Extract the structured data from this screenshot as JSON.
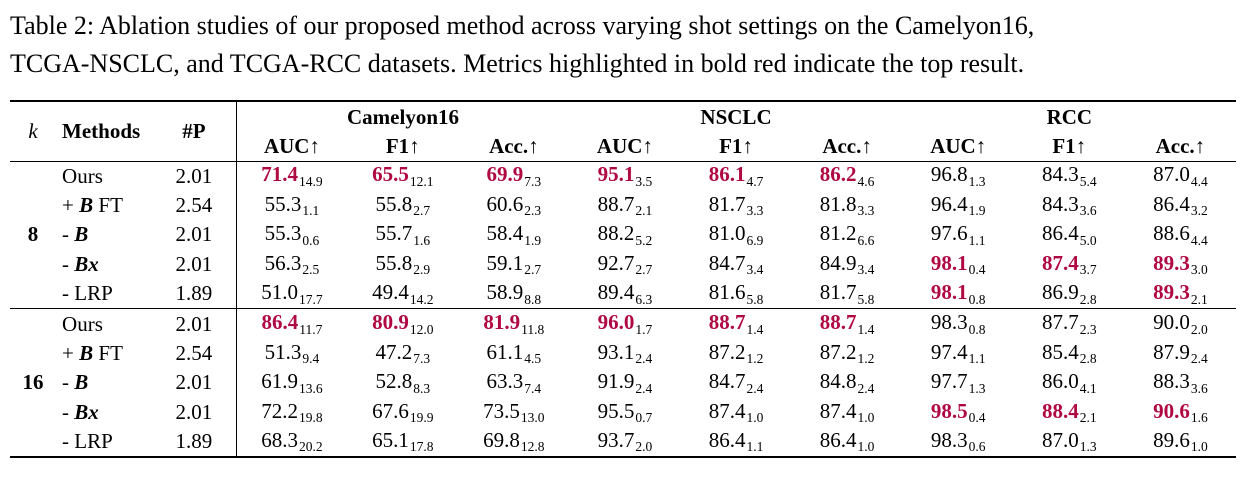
{
  "caption": {
    "line1": "Table 2: Ablation studies of our proposed method across varying shot settings on the Camelyon16,",
    "line2": "TCGA-NSCLC, and TCGA-RCC datasets. Metrics highlighted in bold red indicate the top result."
  },
  "accent_color": "#b00843",
  "table": {
    "header": {
      "k": "k",
      "methods": "Methods",
      "params": "#P",
      "groups": [
        "Camelyon16",
        "NSCLC",
        "RCC"
      ],
      "metrics": [
        "AUC↑",
        "F1↑",
        "Acc.↑",
        "AUC↑",
        "F1↑",
        "Acc.↑",
        "AUC↑",
        "F1↑",
        "Acc.↑"
      ]
    },
    "groups": [
      {
        "k": "8",
        "rows": [
          {
            "method": {
              "pre": "Ours",
              "math": "",
              "post": ""
            },
            "params": "2.01",
            "cells": [
              {
                "v": "71.4",
                "s": "14.9",
                "top": true
              },
              {
                "v": "65.5",
                "s": "12.1",
                "top": true
              },
              {
                "v": "69.9",
                "s": "7.3",
                "top": true
              },
              {
                "v": "95.1",
                "s": "3.5",
                "top": true
              },
              {
                "v": "86.1",
                "s": "4.7",
                "top": true
              },
              {
                "v": "86.2",
                "s": "4.6",
                "top": true
              },
              {
                "v": "96.8",
                "s": "1.3",
                "top": false
              },
              {
                "v": "84.3",
                "s": "5.4",
                "top": false
              },
              {
                "v": "87.0",
                "s": "4.4",
                "top": false
              }
            ]
          },
          {
            "method": {
              "pre": "+ ",
              "math": "B",
              "post": " FT"
            },
            "params": "2.54",
            "cells": [
              {
                "v": "55.3",
                "s": "1.1",
                "top": false
              },
              {
                "v": "55.8",
                "s": "2.7",
                "top": false
              },
              {
                "v": "60.6",
                "s": "2.3",
                "top": false
              },
              {
                "v": "88.7",
                "s": "2.1",
                "top": false
              },
              {
                "v": "81.7",
                "s": "3.3",
                "top": false
              },
              {
                "v": "81.8",
                "s": "3.3",
                "top": false
              },
              {
                "v": "96.4",
                "s": "1.9",
                "top": false
              },
              {
                "v": "84.3",
                "s": "3.6",
                "top": false
              },
              {
                "v": "86.4",
                "s": "3.2",
                "top": false
              }
            ]
          },
          {
            "method": {
              "pre": "- ",
              "math": "B",
              "post": ""
            },
            "params": "2.01",
            "cells": [
              {
                "v": "55.3",
                "s": "0.6",
                "top": false
              },
              {
                "v": "55.7",
                "s": "1.6",
                "top": false
              },
              {
                "v": "58.4",
                "s": "1.9",
                "top": false
              },
              {
                "v": "88.2",
                "s": "5.2",
                "top": false
              },
              {
                "v": "81.0",
                "s": "6.9",
                "top": false
              },
              {
                "v": "81.2",
                "s": "6.6",
                "top": false
              },
              {
                "v": "97.6",
                "s": "1.1",
                "top": false
              },
              {
                "v": "86.4",
                "s": "5.0",
                "top": false
              },
              {
                "v": "88.6",
                "s": "4.4",
                "top": false
              }
            ]
          },
          {
            "method": {
              "pre": "- ",
              "math": "Bx",
              "post": ""
            },
            "params": "2.01",
            "cells": [
              {
                "v": "56.3",
                "s": "2.5",
                "top": false
              },
              {
                "v": "55.8",
                "s": "2.9",
                "top": false
              },
              {
                "v": "59.1",
                "s": "2.7",
                "top": false
              },
              {
                "v": "92.7",
                "s": "2.7",
                "top": false
              },
              {
                "v": "84.7",
                "s": "3.4",
                "top": false
              },
              {
                "v": "84.9",
                "s": "3.4",
                "top": false
              },
              {
                "v": "98.1",
                "s": "0.4",
                "top": true
              },
              {
                "v": "87.4",
                "s": "3.7",
                "top": true
              },
              {
                "v": "89.3",
                "s": "3.0",
                "top": true
              }
            ]
          },
          {
            "method": {
              "pre": "- LRP",
              "math": "",
              "post": ""
            },
            "params": "1.89",
            "cells": [
              {
                "v": "51.0",
                "s": "17.7",
                "top": false
              },
              {
                "v": "49.4",
                "s": "14.2",
                "top": false
              },
              {
                "v": "58.9",
                "s": "8.8",
                "top": false
              },
              {
                "v": "89.4",
                "s": "6.3",
                "top": false
              },
              {
                "v": "81.6",
                "s": "5.8",
                "top": false
              },
              {
                "v": "81.7",
                "s": "5.8",
                "top": false
              },
              {
                "v": "98.1",
                "s": "0.8",
                "top": true
              },
              {
                "v": "86.9",
                "s": "2.8",
                "top": false
              },
              {
                "v": "89.3",
                "s": "2.1",
                "top": true
              }
            ]
          }
        ]
      },
      {
        "k": "16",
        "rows": [
          {
            "method": {
              "pre": "Ours",
              "math": "",
              "post": ""
            },
            "params": "2.01",
            "cells": [
              {
                "v": "86.4",
                "s": "11.7",
                "top": true
              },
              {
                "v": "80.9",
                "s": "12.0",
                "top": true
              },
              {
                "v": "81.9",
                "s": "11.8",
                "top": true
              },
              {
                "v": "96.0",
                "s": "1.7",
                "top": true
              },
              {
                "v": "88.7",
                "s": "1.4",
                "top": true
              },
              {
                "v": "88.7",
                "s": "1.4",
                "top": true
              },
              {
                "v": "98.3",
                "s": "0.8",
                "top": false
              },
              {
                "v": "87.7",
                "s": "2.3",
                "top": false
              },
              {
                "v": "90.0",
                "s": "2.0",
                "top": false
              }
            ]
          },
          {
            "method": {
              "pre": "+ ",
              "math": "B",
              "post": " FT"
            },
            "params": "2.54",
            "cells": [
              {
                "v": "51.3",
                "s": "9.4",
                "top": false
              },
              {
                "v": "47.2",
                "s": "7.3",
                "top": false
              },
              {
                "v": "61.1",
                "s": "4.5",
                "top": false
              },
              {
                "v": "93.1",
                "s": "2.4",
                "top": false
              },
              {
                "v": "87.2",
                "s": "1.2",
                "top": false
              },
              {
                "v": "87.2",
                "s": "1.2",
                "top": false
              },
              {
                "v": "97.4",
                "s": "1.1",
                "top": false
              },
              {
                "v": "85.4",
                "s": "2.8",
                "top": false
              },
              {
                "v": "87.9",
                "s": "2.4",
                "top": false
              }
            ]
          },
          {
            "method": {
              "pre": "- ",
              "math": "B",
              "post": ""
            },
            "params": "2.01",
            "cells": [
              {
                "v": "61.9",
                "s": "13.6",
                "top": false
              },
              {
                "v": "52.8",
                "s": "8.3",
                "top": false
              },
              {
                "v": "63.3",
                "s": "7.4",
                "top": false
              },
              {
                "v": "91.9",
                "s": "2.4",
                "top": false
              },
              {
                "v": "84.7",
                "s": "2.4",
                "top": false
              },
              {
                "v": "84.8",
                "s": "2.4",
                "top": false
              },
              {
                "v": "97.7",
                "s": "1.3",
                "top": false
              },
              {
                "v": "86.0",
                "s": "4.1",
                "top": false
              },
              {
                "v": "88.3",
                "s": "3.6",
                "top": false
              }
            ]
          },
          {
            "method": {
              "pre": "- ",
              "math": "Bx",
              "post": ""
            },
            "params": "2.01",
            "cells": [
              {
                "v": "72.2",
                "s": "19.8",
                "top": false
              },
              {
                "v": "67.6",
                "s": "19.9",
                "top": false
              },
              {
                "v": "73.5",
                "s": "13.0",
                "top": false
              },
              {
                "v": "95.5",
                "s": "0.7",
                "top": false
              },
              {
                "v": "87.4",
                "s": "1.0",
                "top": false
              },
              {
                "v": "87.4",
                "s": "1.0",
                "top": false
              },
              {
                "v": "98.5",
                "s": "0.4",
                "top": true
              },
              {
                "v": "88.4",
                "s": "2.1",
                "top": true
              },
              {
                "v": "90.6",
                "s": "1.6",
                "top": true
              }
            ]
          },
          {
            "method": {
              "pre": "- LRP",
              "math": "",
              "post": ""
            },
            "params": "1.89",
            "cells": [
              {
                "v": "68.3",
                "s": "20.2",
                "top": false
              },
              {
                "v": "65.1",
                "s": "17.8",
                "top": false
              },
              {
                "v": "69.8",
                "s": "12.8",
                "top": false
              },
              {
                "v": "93.7",
                "s": "2.0",
                "top": false
              },
              {
                "v": "86.4",
                "s": "1.1",
                "top": false
              },
              {
                "v": "86.4",
                "s": "1.0",
                "top": false
              },
              {
                "v": "98.3",
                "s": "0.6",
                "top": false
              },
              {
                "v": "87.0",
                "s": "1.3",
                "top": false
              },
              {
                "v": "89.6",
                "s": "1.0",
                "top": false
              }
            ]
          }
        ]
      }
    ]
  }
}
